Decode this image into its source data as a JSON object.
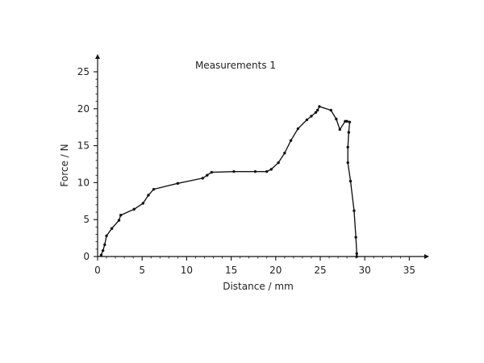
{
  "chart_data": {
    "type": "line",
    "title": "Measurements 1",
    "xlabel": "Distance / mm",
    "ylabel": "Force / N",
    "xlim": [
      0,
      35
    ],
    "ylim": [
      0,
      25
    ],
    "x_ticks": [
      0,
      5,
      10,
      15,
      20,
      25,
      30,
      35
    ],
    "y_ticks": [
      0,
      5,
      10,
      15,
      20,
      25
    ],
    "x_tick_labels": [
      "0",
      "5",
      "10",
      "15",
      "20",
      "25",
      "30",
      "35"
    ],
    "y_tick_labels": [
      "0",
      "5",
      "10",
      "15",
      "20",
      "25"
    ],
    "grid": false,
    "legend": "none",
    "colors": {
      "line": "#111111",
      "axis": "#111111",
      "text": "#222222"
    },
    "series": [
      {
        "x": [
          0.4,
          0.6,
          0.8,
          1.0,
          1.6,
          2.4,
          2.6,
          4.1,
          5.1,
          5.7,
          6.3,
          9.0,
          11.8,
          12.3,
          12.8,
          15.3,
          17.7,
          19.0,
          19.5,
          20.3,
          21.0,
          21.7,
          22.5,
          23.5,
          24.0,
          24.5,
          24.7,
          24.9,
          26.2,
          26.8,
          27.2,
          27.8,
          28.0,
          28.3,
          28.2,
          28.1,
          28.1,
          28.4,
          28.8,
          29.0,
          29.1,
          29.1
        ],
        "y": [
          0.2,
          0.8,
          1.6,
          2.8,
          3.8,
          4.9,
          5.6,
          6.4,
          7.2,
          8.3,
          9.1,
          9.9,
          10.6,
          11.0,
          11.4,
          11.5,
          11.5,
          11.5,
          11.8,
          12.7,
          14.0,
          15.7,
          17.3,
          18.5,
          19.0,
          19.5,
          19.8,
          20.3,
          19.8,
          18.6,
          17.2,
          18.3,
          18.3,
          18.2,
          16.8,
          14.8,
          12.7,
          10.2,
          6.2,
          2.6,
          0.4,
          0.0
        ]
      }
    ]
  }
}
